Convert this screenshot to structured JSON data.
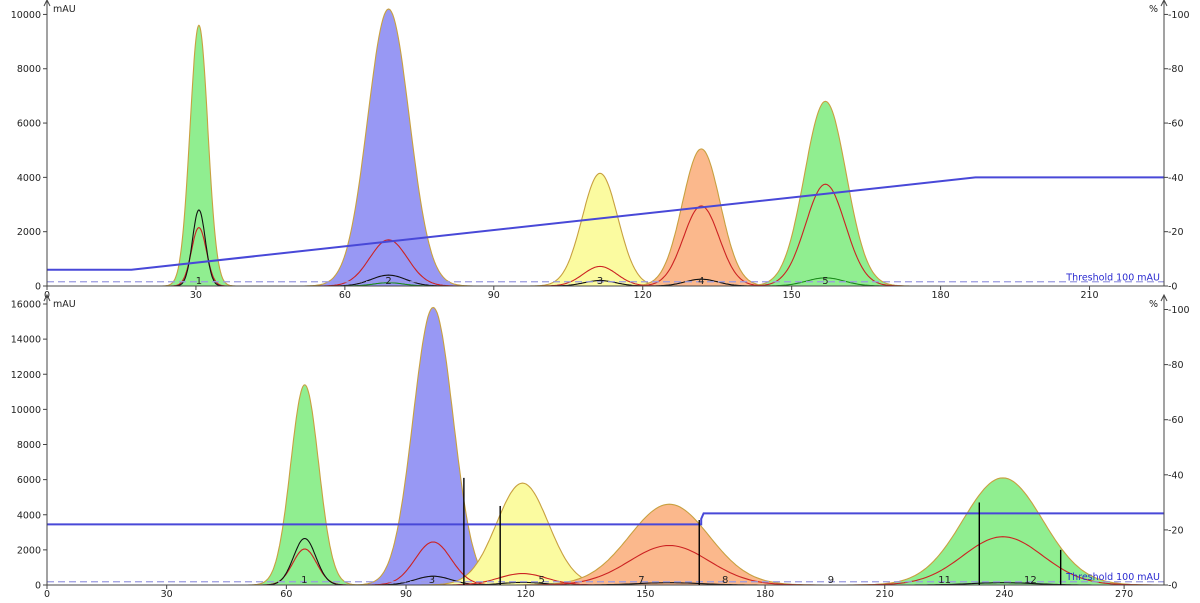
{
  "chart_data": [
    {
      "type": "area",
      "panel": "top",
      "y_unit": "mAU",
      "y2_unit": "%",
      "xlim": [
        0,
        225
      ],
      "ylim": [
        0,
        10200
      ],
      "y2lim": [
        0,
        102
      ],
      "x_ticks": [
        "0",
        "30",
        "60",
        "90",
        "120",
        "150",
        "180",
        "210"
      ],
      "y_ticks": [
        "0",
        "2000",
        "4000",
        "6000",
        "8000",
        "10000"
      ],
      "y2_ticks": [
        "0",
        "20",
        "40",
        "60",
        "80",
        "100"
      ],
      "threshold": {
        "value": 100,
        "label": "Threshold 100 mAU"
      },
      "peaks": [
        {
          "label": "1",
          "center": 30.6,
          "height": 9600,
          "width": 1.8,
          "color": "#90ee90",
          "sub": [
            {
              "color": "#cc2222",
              "height": 2150,
              "width": 1.5
            },
            {
              "color": "#111111",
              "height": 2800,
              "width": 1.3
            }
          ]
        },
        {
          "label": "2",
          "center": 68.8,
          "height": 10200,
          "width": 4.2,
          "color": "#9898f4",
          "sub": [
            {
              "color": "#cc2222",
              "height": 1700,
              "width": 3.8
            },
            {
              "color": "#111111",
              "height": 400,
              "width": 3.5
            },
            {
              "color": "#1a8a1a",
              "height": 120,
              "width": 3
            }
          ]
        },
        {
          "label": "3",
          "center": 111.4,
          "height": 4150,
          "width": 3.6,
          "color": "#fbfba0",
          "sub": [
            {
              "color": "#cc2222",
              "height": 720,
              "width": 3.4
            },
            {
              "color": "#111111",
              "height": 200,
              "width": 3.2
            }
          ]
        },
        {
          "label": "4",
          "center": 131.8,
          "height": 5050,
          "width": 3.8,
          "color": "#fbb88c",
          "sub": [
            {
              "color": "#cc2222",
              "height": 2950,
              "width": 3.6
            },
            {
              "color": "#111111",
              "height": 250,
              "width": 3.3
            }
          ]
        },
        {
          "label": "5",
          "center": 156.8,
          "height": 6800,
          "width": 4.2,
          "color": "#90ee90",
          "sub": [
            {
              "color": "#cc2222",
              "height": 3750,
              "width": 4
            },
            {
              "color": "#1a8a1a",
              "height": 300,
              "width": 3.8
            }
          ]
        }
      ],
      "gradient": [
        [
          0,
          6
        ],
        [
          17,
          6
        ],
        [
          187,
          40
        ],
        [
          225,
          40
        ]
      ]
    },
    {
      "type": "area",
      "panel": "bottom",
      "y_unit": "mAU",
      "y2_unit": "%",
      "xlim": [
        0,
        280
      ],
      "ylim": [
        0,
        16000
      ],
      "y2lim": [
        0,
        102
      ],
      "x_ticks": [
        "0",
        "30",
        "60",
        "90",
        "120",
        "150",
        "180",
        "210",
        "240",
        "270"
      ],
      "y_ticks": [
        "0",
        "2000",
        "4000",
        "6000",
        "8000",
        "10000",
        "12000",
        "14000",
        "16000"
      ],
      "y2_ticks": [
        "0",
        "20",
        "40",
        "60",
        "80",
        "100"
      ],
      "threshold": {
        "value": 100,
        "label": "Threshold 100 mAU"
      },
      "peaks": [
        {
          "label": "1",
          "center": 64.6,
          "height": 11400,
          "width": 3.5,
          "color": "#90ee90",
          "sub": [
            {
              "color": "#cc2222",
              "height": 2050,
              "width": 3
            },
            {
              "color": "#111111",
              "height": 2650,
              "width": 2.8
            }
          ]
        },
        {
          "label": "3",
          "center": 96.8,
          "height": 15800,
          "width": 5,
          "color": "#9898f4",
          "sub": [
            {
              "color": "#cc2222",
              "height": 2450,
              "width": 4.5
            },
            {
              "color": "#111111",
              "height": 500,
              "width": 4.5
            }
          ]
        },
        {
          "label": "5",
          "center": 119.2,
          "height": 5800,
          "width": 6.5,
          "color": "#fbfba0",
          "sub": [
            {
              "color": "#cc2222",
              "height": 650,
              "width": 6
            },
            {
              "color": "#111111",
              "height": 150,
              "width": 5
            }
          ]
        },
        {
          "label": "7",
          "center": 156,
          "height": 4600,
          "width": 10,
          "color": "#fbb88c",
          "sub": [
            {
              "color": "#cc2222",
              "height": 2250,
              "width": 10
            },
            {
              "color": "#111111",
              "height": 130,
              "width": 8
            }
          ]
        },
        {
          "label": "12",
          "center": 239.6,
          "height": 6100,
          "width": 10,
          "color": "#90ee90",
          "sub": [
            {
              "color": "#cc2222",
              "height": 2750,
              "width": 10
            },
            {
              "color": "#111111",
              "height": 130,
              "width": 8
            }
          ]
        }
      ],
      "frac_labels": [
        {
          "x": 64.5,
          "label": "1"
        },
        {
          "x": 96.5,
          "label": "3"
        },
        {
          "x": 124,
          "label": "5"
        },
        {
          "x": 149,
          "label": "7"
        },
        {
          "x": 170,
          "label": "8"
        },
        {
          "x": 196.5,
          "label": "9"
        },
        {
          "x": 225,
          "label": "11"
        },
        {
          "x": 246.5,
          "label": "12"
        }
      ],
      "frac_marks": [
        [
          104.5,
          6100
        ],
        [
          113.6,
          4500
        ],
        [
          163.5,
          3700
        ],
        [
          233.7,
          4700
        ],
        [
          254.1,
          2000
        ]
      ],
      "gradient": [
        [
          0,
          22
        ],
        [
          164,
          22
        ],
        [
          164,
          24
        ],
        [
          164.6,
          26
        ],
        [
          280,
          26
        ]
      ]
    }
  ]
}
